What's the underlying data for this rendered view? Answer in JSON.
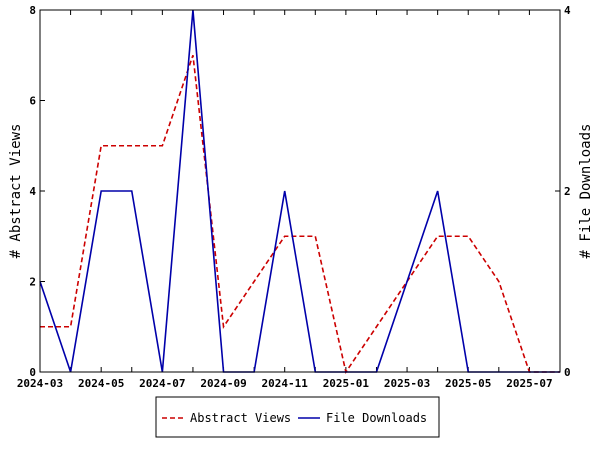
{
  "chart_data": {
    "type": "line",
    "x": [
      "2024-03",
      "2024-04",
      "2024-05",
      "2024-06",
      "2024-07",
      "2024-08",
      "2024-09",
      "2024-10",
      "2024-11",
      "2024-12",
      "2025-01",
      "2025-02",
      "2025-03",
      "2025-04",
      "2025-05",
      "2025-06",
      "2025-07",
      "2025-08"
    ],
    "x_tick_labels": [
      "2024-03",
      "2024-05",
      "2024-07",
      "2024-09",
      "2024-11",
      "2025-01",
      "2025-03",
      "2025-05",
      "2025-07"
    ],
    "series": [
      {
        "name": "Abstract Views",
        "axis": "left",
        "color": "#cc0000",
        "style": "dashed",
        "values": [
          1,
          1,
          5,
          5,
          5,
          7,
          1,
          2,
          3,
          3,
          0,
          1,
          2,
          3,
          3,
          2,
          0,
          0
        ]
      },
      {
        "name": "File Downloads",
        "axis": "right",
        "color": "#0000aa",
        "style": "solid",
        "values": [
          1,
          0,
          2,
          2,
          0,
          4,
          0,
          0,
          2,
          0,
          0,
          0,
          1,
          2,
          0,
          0,
          0,
          0
        ]
      }
    ],
    "ylabel": "# Abstract Views",
    "y2label": "# File Downloads",
    "ylim": [
      0,
      8
    ],
    "y2lim": [
      0,
      4
    ],
    "y_ticks": [
      0,
      2,
      4,
      6,
      8
    ],
    "y2_ticks": [
      0,
      2,
      4
    ],
    "grid": false,
    "legend_position": "bottom"
  }
}
